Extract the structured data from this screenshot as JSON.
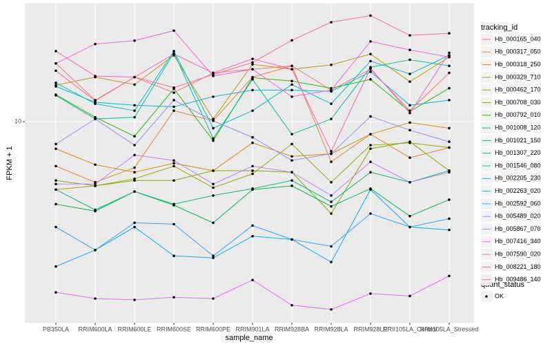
{
  "chart_data": {
    "type": "line",
    "x_label": "sample_name",
    "y_label": "FPKM + 1",
    "log_scale": "y",
    "grid": true,
    "ylim": [
      1.07,
      37.2
    ],
    "yticks": [
      10
    ],
    "legend_title": "tracking_id",
    "shape_legend": {
      "title": "quant_status",
      "labels": [
        "OK"
      ]
    },
    "categories": [
      "PB350LA",
      "RRIM600LA",
      "RRIM600LE",
      "RRIM600SE",
      "RRIM600PE",
      "RRIM901LA",
      "RRIM928BA",
      "RRIM928LA",
      "RRIM928LE",
      "RRII105LA_Control",
      "RRII105LA_Stressed"
    ],
    "series": [
      {
        "name": "Hb_000165_040",
        "color": "#F8766D",
        "values": [
          17.6,
          12.6,
          16.4,
          13.8,
          17.2,
          17.9,
          18.6,
          14.2,
          17.9,
          11.3,
          17.2
        ]
      },
      {
        "name": "Hb_000317_050",
        "color": "#EA8331",
        "values": [
          6.1,
          5.1,
          6.0,
          11.3,
          10.1,
          16.4,
          18.6,
          6.4,
          8.7,
          6.7,
          7.5
        ]
      },
      {
        "name": "Hb_000318_250",
        "color": "#D89000",
        "values": [
          7.4,
          6.2,
          5.7,
          6.3,
          5.8,
          7.9,
          6.8,
          7.0,
          8.7,
          9.9,
          9.3
        ]
      },
      {
        "name": "Hb_000329_710",
        "color": "#C09B00",
        "values": [
          15.0,
          16.4,
          15.1,
          20.9,
          10.3,
          18.9,
          17.9,
          18.8,
          21.2,
          15.6,
          20.5
        ]
      },
      {
        "name": "Hb_000462_170",
        "color": "#A3A500",
        "values": [
          4.7,
          4.9,
          5.3,
          6.1,
          4.8,
          5.6,
          7.8,
          5.1,
          7.7,
          7.9,
          7.5
        ]
      },
      {
        "name": "Hb_000708_030",
        "color": "#7CAE00",
        "values": [
          5.2,
          4.9,
          5.2,
          5.2,
          5.8,
          5.8,
          5.7,
          3.6,
          7.4,
          8.0,
          5.8
        ]
      },
      {
        "name": "Hb_000792_010",
        "color": "#39B600",
        "values": [
          13.5,
          10.5,
          8.5,
          14.4,
          8.1,
          16.3,
          15.7,
          14.5,
          16.0,
          11.2,
          14.5
        ]
      },
      {
        "name": "Hb_001008_120",
        "color": "#00BB4E",
        "values": [
          4.0,
          3.7,
          4.6,
          3.95,
          3.25,
          4.7,
          4.9,
          3.9,
          4.75,
          3.5,
          4.2
        ]
      },
      {
        "name": "Hb_001021_150",
        "color": "#00BF7D",
        "values": [
          4.7,
          3.75,
          4.6,
          4.0,
          4.4,
          4.75,
          5.2,
          4.1,
          5.7,
          5.1,
          5.8
        ]
      },
      {
        "name": "Hb_001307_220",
        "color": "#00C1A3",
        "values": [
          13.4,
          10.3,
          10.5,
          21.5,
          8.3,
          16.0,
          8.7,
          10.3,
          18.3,
          19.9,
          18.6
        ]
      },
      {
        "name": "Hb_001546_080",
        "color": "#00BFC4",
        "values": [
          15.4,
          12.2,
          11.3,
          21.9,
          9.3,
          11.3,
          15.1,
          12.2,
          19.6,
          17.0,
          20.9
        ]
      },
      {
        "name": "Hb_002205_230",
        "color": "#00BAE0",
        "values": [
          14.8,
          12.4,
          12.0,
          11.8,
          13.2,
          14.2,
          14.2,
          14.0,
          17.4,
          12.0,
          12.7
        ]
      },
      {
        "name": "Hb_002263_020",
        "color": "#00B0F6",
        "values": [
          2.0,
          2.4,
          3.1,
          2.25,
          2.2,
          2.8,
          2.7,
          2.1,
          4.7,
          3.1,
          3.0
        ]
      },
      {
        "name": "Hb_002592_060",
        "color": "#35A2FF",
        "values": [
          3.1,
          2.4,
          3.25,
          3.2,
          2.25,
          3.15,
          2.7,
          2.5,
          3.6,
          3.1,
          3.4
        ]
      },
      {
        "name": "Hb_005489_020",
        "color": "#9590FF",
        "values": [
          7.8,
          10.3,
          7.7,
          12.7,
          10.1,
          8.4,
          6.5,
          7.0,
          10.6,
          9.1,
          8.0
        ]
      },
      {
        "name": "Hb_005867_070",
        "color": "#C77CFF",
        "values": [
          5.0,
          5.0,
          6.9,
          6.5,
          5.0,
          6.1,
          5.7,
          4.4,
          6.4,
          5.1,
          5.7
        ]
      },
      {
        "name": "Hb_007416_340",
        "color": "#E76BF3",
        "values": [
          1.5,
          1.4,
          1.38,
          1.42,
          1.4,
          1.72,
          1.3,
          1.24,
          1.48,
          1.44,
          1.8
        ]
      },
      {
        "name": "Hb_007590_020",
        "color": "#FA62DB",
        "values": [
          19.1,
          23.7,
          24.6,
          27.5,
          16.6,
          17.9,
          13.2,
          14.2,
          24.4,
          22.2,
          20.5
        ]
      },
      {
        "name": "Hb_008221_180",
        "color": "#FF62BC",
        "values": [
          21.9,
          16.6,
          16.4,
          21.2,
          17.2,
          20.1,
          17.9,
          7.2,
          18.1,
          11.0,
          21.5
        ]
      },
      {
        "name": "Hb_009486_140",
        "color": "#FF6C91",
        "values": [
          19.1,
          12.7,
          16.4,
          14.6,
          16.9,
          19.3,
          24.7,
          30.2,
          32.5,
          26.1,
          26.7
        ]
      }
    ]
  }
}
